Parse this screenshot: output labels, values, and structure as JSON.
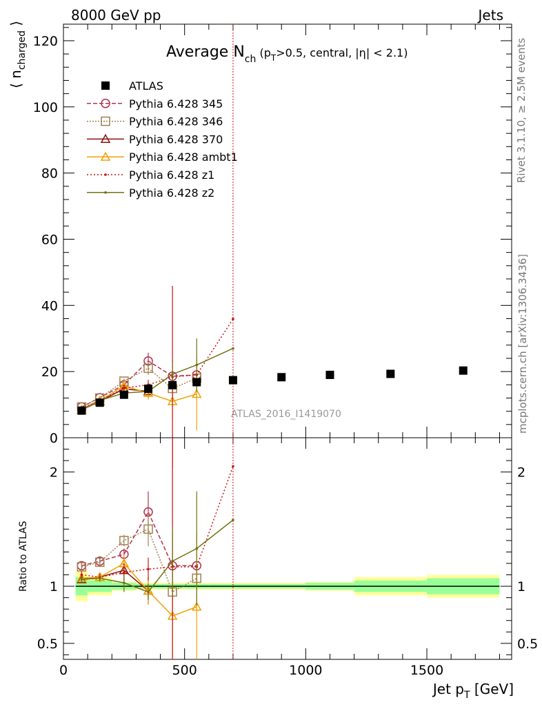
{
  "header": {
    "left": "8000 GeV pp",
    "right": "Jets"
  },
  "title": {
    "main": "Average N",
    "sub": "ch",
    "rest1": " (p",
    "sub2": "T",
    "rest2": ">0.5, central, |η| < 2.1)"
  },
  "side": {
    "rivet": "Rivet 3.1.10, ≥ 2.5M events",
    "mcplots": "mcplots.cern.ch [arXiv:1306.3436]"
  },
  "analysis_label": "ATLAS_2016_I1419070",
  "axes": {
    "ylabel_main": "⟨ n",
    "ylabel_main_sub": "charged",
    "ylabel_main_close": " ⟩",
    "ylabel_ratio": "Ratio to ATLAS",
    "xlabel": "Jet p",
    "xlabel_sub": "T",
    "xlabel_unit": " [GeV]"
  },
  "colors": {
    "atlas": "#000000",
    "band_inner": "#99ff99",
    "band_outer": "#ffff99"
  },
  "chart_data": [
    {
      "type": "scatter",
      "panel": "main",
      "xlim": [
        0,
        1850
      ],
      "ylim": [
        0,
        125
      ],
      "x_ticks": [
        0,
        500,
        1000,
        1500
      ],
      "y_ticks": [
        0,
        20,
        40,
        60,
        80,
        100,
        120
      ],
      "legend_position": "top-left",
      "data": {
        "name": "ATLAS",
        "x": [
          75,
          150,
          250,
          350,
          450,
          550,
          700,
          900,
          1100,
          1350,
          1650
        ],
        "y": [
          8.2,
          10.6,
          13.0,
          14.8,
          15.9,
          16.8,
          17.4,
          18.3,
          19.0,
          19.3,
          20.3
        ],
        "band_x": [
          [
            50,
            100
          ],
          [
            100,
            200
          ],
          [
            200,
            300
          ],
          [
            300,
            400
          ],
          [
            400,
            500
          ],
          [
            500,
            600
          ],
          [
            600,
            800
          ],
          [
            800,
            1000
          ],
          [
            1000,
            1200
          ],
          [
            1200,
            1500
          ],
          [
            1500,
            1800
          ]
        ]
      },
      "series": [
        {
          "name": "Pythia 6.428 345",
          "color": "#b03050",
          "dash": "6,3",
          "marker": "circle",
          "x": [
            75,
            150,
            250,
            350,
            450,
            550
          ],
          "y": [
            9.3,
            12.1,
            16.0,
            23.2,
            18.6,
            19.0
          ],
          "err": [
            0.3,
            0.4,
            0.8,
            2.5,
            5,
            0
          ]
        },
        {
          "name": "Pythia 6.428 346",
          "color": "#a08050",
          "dash": "2,2",
          "marker": "square",
          "x": [
            75,
            150,
            250,
            350,
            450,
            550
          ],
          "y": [
            9.3,
            12.0,
            17.1,
            21.0,
            14.9,
            18.0
          ],
          "err": [
            0.3,
            0.4,
            0.8,
            2.0,
            4,
            0
          ]
        },
        {
          "name": "Pythia 6.428 370",
          "color": "#8b1010",
          "dash": "",
          "marker": "triangle",
          "x": [
            75,
            150,
            250,
            350
          ],
          "y": [
            8.4,
            11.0,
            14.8,
            14.0
          ],
          "err": [
            0.3,
            0.4,
            1.0,
            2.0
          ]
        },
        {
          "name": "Pythia 6.428 ambt1",
          "color": "#f0a000",
          "dash": "",
          "marker": "triangle",
          "x": [
            75,
            150,
            250,
            350,
            450,
            550
          ],
          "y": [
            8.5,
            11.2,
            15.7,
            13.5,
            11.0,
            13.2
          ],
          "err": [
            0.3,
            0.4,
            1.0,
            2.0,
            6,
            11
          ]
        },
        {
          "name": "Pythia 6.428 z1",
          "color": "#cc1010",
          "dash": "2,3",
          "marker": "dot",
          "x": [
            75,
            150,
            250,
            350,
            450,
            550,
            700
          ],
          "y": [
            8.9,
            11.2,
            15.0,
            16.0,
            18.4,
            19.0,
            35.9
          ],
          "err": [
            0.3,
            0.4,
            1.0,
            1.5,
            27.5,
            0,
            0
          ]
        },
        {
          "name": "Pythia 6.428 z2",
          "color": "#707010",
          "dash": "",
          "marker": "dot",
          "x": [
            75,
            150,
            250,
            350,
            450,
            550,
            700
          ],
          "y": [
            8.6,
            11.3,
            13.5,
            14.0,
            19.2,
            22.0,
            27.0
          ],
          "err": [
            0.3,
            0.4,
            1.0,
            1.0,
            4,
            8,
            0
          ]
        }
      ],
      "vlines": [
        {
          "x": 700,
          "color": "#cc1010"
        }
      ]
    },
    {
      "type": "line",
      "panel": "ratio",
      "ylabel": "Ratio to ATLAS",
      "xlabel": "Jet pT [GeV]",
      "xlim": [
        0,
        1850
      ],
      "ylim": [
        0.36,
        2.3
      ],
      "y_ticks": [
        0.5,
        1,
        2
      ],
      "band": {
        "x": [
          [
            50,
            100
          ],
          [
            100,
            200
          ],
          [
            200,
            300
          ],
          [
            300,
            400
          ],
          [
            400,
            500
          ],
          [
            500,
            600
          ],
          [
            600,
            800
          ],
          [
            800,
            1000
          ],
          [
            1000,
            1200
          ],
          [
            1200,
            1500
          ],
          [
            1500,
            1800
          ]
        ],
        "inner": [
          0.08,
          0.05,
          0.03,
          0.02,
          0.02,
          0.02,
          0.02,
          0.02,
          0.03,
          0.05,
          0.07
        ],
        "outer": [
          0.13,
          0.08,
          0.04,
          0.03,
          0.03,
          0.03,
          0.03,
          0.03,
          0.04,
          0.08,
          0.1
        ]
      },
      "series": [
        {
          "name": "Pythia 6.428 345",
          "x": [
            75,
            150,
            250,
            350,
            450,
            550
          ],
          "y": [
            1.18,
            1.22,
            1.28,
            1.65,
            1.18,
            1.18
          ],
          "err": [
            0.03,
            0.03,
            0.05,
            0.18,
            0.3,
            0
          ]
        },
        {
          "name": "Pythia 6.428 346",
          "x": [
            75,
            150,
            250,
            350,
            450,
            550
          ],
          "y": [
            1.17,
            1.21,
            1.4,
            1.5,
            0.95,
            1.07
          ],
          "err": [
            0.03,
            0.03,
            0.05,
            0.15,
            0.25,
            0
          ]
        },
        {
          "name": "Pythia 6.428 370",
          "x": [
            75,
            150,
            250,
            350
          ],
          "y": [
            1.06,
            1.08,
            1.14,
            0.96
          ],
          "err": [
            0.03,
            0.03,
            0.08,
            0.12
          ]
        },
        {
          "name": "Pythia 6.428 ambt1",
          "x": [
            75,
            150,
            250,
            350,
            450,
            550
          ],
          "y": [
            1.07,
            1.08,
            1.2,
            0.96,
            0.74,
            0.82
          ],
          "err": [
            0.03,
            0.03,
            0.08,
            0.12,
            0.4,
            0.65
          ]
        },
        {
          "name": "Pythia 6.428 z1",
          "x": [
            75,
            150,
            250,
            350,
            450,
            550,
            700
          ],
          "y": [
            1.1,
            1.08,
            1.12,
            1.15,
            1.17,
            1.17,
            2.05
          ],
          "err": [
            0.03,
            0.03,
            0.08,
            0.1,
            1.8,
            0,
            0
          ]
        },
        {
          "name": "Pythia 6.428 z2",
          "x": [
            75,
            150,
            250,
            350,
            450,
            550,
            700
          ],
          "y": [
            1.06,
            1.07,
            1.03,
            0.95,
            1.22,
            1.33,
            1.58
          ],
          "err": [
            0.03,
            0.03,
            0.08,
            0.07,
            0.3,
            0.5,
            0
          ]
        }
      ]
    }
  ]
}
